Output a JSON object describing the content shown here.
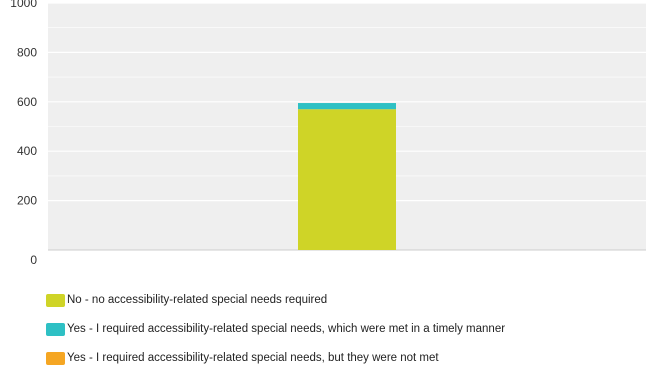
{
  "chart_data": {
    "type": "bar",
    "stacked": true,
    "categories": [
      ""
    ],
    "series": [
      {
        "name": "No - no accessibility-related special needs required",
        "values": [
          570
        ],
        "color": "#cfd427"
      },
      {
        "name": "Yes - I required accessibility-related special needs, which were met in a timely manner",
        "values": [
          25
        ],
        "color": "#2ec0c4"
      },
      {
        "name": "Yes - I required accessibility-related special needs, but they were not met",
        "values": [
          0
        ],
        "color": "#f5a623"
      }
    ],
    "yticks": [
      "0",
      "200",
      "400",
      "600",
      "800",
      "1000"
    ],
    "ylim": [
      0,
      1000
    ],
    "grid": true,
    "legend_position": "bottom-left",
    "background_color": "#efefef"
  }
}
